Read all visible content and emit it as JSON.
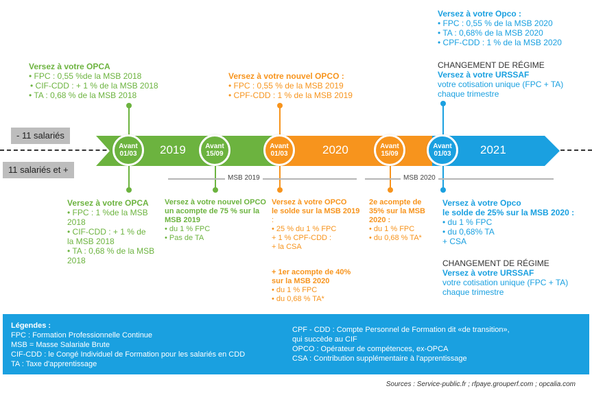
{
  "colors": {
    "green": "#6cb33f",
    "orange": "#f7941d",
    "blue": "#1aa0e0",
    "grey": "#bdbdbd"
  },
  "labels": {
    "small": "- 11 salariés",
    "large": "11 salariés et +"
  },
  "years": [
    "2019",
    "2020",
    "2021"
  ],
  "milestones": [
    {
      "line1": "Avant",
      "line2": "01/03"
    },
    {
      "line1": "Avant",
      "line2": "15/09"
    },
    {
      "line1": "Avant",
      "line2": "01/03"
    },
    {
      "line1": "Avant",
      "line2": "15/09"
    },
    {
      "line1": "Avant",
      "line2": "01/03"
    }
  ],
  "msb": {
    "label2019": "MSB 2019",
    "label2020": "MSB 2020"
  },
  "top": {
    "opca": {
      "title": "Versez à votre OPCA",
      "lines": [
        "• FPC : 0,55 %de la MSB 2018",
        "• CIF-CDD : + 1 % de la MSB 2018",
        "• TA : 0,68 % de la MSB 2018"
      ]
    },
    "opco2019": {
      "title": "Versez à votre nouvel OPCO :",
      "lines": [
        "• FPC : 0,55 % de la MSB 2019",
        "• CPF-CDD : 1 % de la MSB 2019"
      ]
    },
    "opco2020": {
      "title": "Versez à votre Opco :",
      "lines": [
        "• FPC : 0,55 % de la MSB 2020",
        "• TA : 0,68% de la MSB 2020",
        "• CPF-CDD : 1 % de la MSB 2020"
      ]
    },
    "regime": {
      "title": "CHANGEMENT DE RÉGIME",
      "subtitle": "Versez à votre URSSAF",
      "lines": [
        "votre cotisation unique (FPC + TA)",
        "chaque trimestre"
      ]
    }
  },
  "bottom": {
    "opca": {
      "title": "Versez à votre OPCA",
      "lines": [
        "• FPC : 1 %de la MSB",
        "2018",
        "• CIF-CDD : + 1 % de",
        "la MSB 2018",
        "• TA : 0,68 % de la MSB",
        "2018"
      ]
    },
    "opco_acompte": {
      "title_lines": [
        "Versez à votre nouvel OPCO",
        "un acompte de 75 % sur la",
        "MSB 2019"
      ],
      "lines": [
        "• du 1 % FPC",
        "• Pas de TA"
      ]
    },
    "opco_solde": {
      "title_lines": [
        "Versez à votre OPCO",
        "le solde sur la MSB 2019"
      ],
      "lines": [
        ":",
        "• 25 % du 1 % FPC",
        "+ 1 % CPF-CDD :",
        "+ la CSA"
      ]
    },
    "acompte40": {
      "title_lines": [
        "+ 1er acompte de 40%",
        "sur la MSB 2020"
      ],
      "lines": [
        "• du 1 % FPC",
        "• du 0,68 % TA*"
      ]
    },
    "acompte2": {
      "title_lines": [
        "2e acompte  de",
        "35% sur la MSB",
        "2020 :"
      ],
      "lines": [
        "• du 1 % FPC",
        "• du 0,68 % TA*"
      ]
    },
    "opco_solde2020": {
      "title_lines": [
        "Versez à votre Opco",
        "le solde de 25% sur la MSB 2020 :"
      ],
      "lines": [
        "• du 1 % FPC",
        "• du 0,68% TA",
        "+ CSA"
      ]
    },
    "regime": {
      "title": "CHANGEMENT DE RÉGIME",
      "subtitle": "Versez à votre URSSAF",
      "lines": [
        "votre cotisation unique (FPC + TA)",
        "chaque trimestre"
      ]
    }
  },
  "legend": {
    "title": "Légendes :",
    "left": [
      "FPC : Formation Professionnelle Continue",
      "MSB = Masse Salariale Brute",
      "CIF-CDD : le Congé Individuel de Formation pour les salariés en CDD",
      "TA  : Taxe d'apprentissage"
    ],
    "right": [
      "CPF - CDD : Compte Personnel de Formation dit «de transition»,",
      "qui succède au CIF",
      "OPCO : Opérateur de compétences, ex-OPCA",
      "CSA : Contribution supplémentaire à l'apprentissage"
    ]
  },
  "sources": "Sources : Service-public.fr ; rfpaye.grouperf.com ; opcalia.com"
}
